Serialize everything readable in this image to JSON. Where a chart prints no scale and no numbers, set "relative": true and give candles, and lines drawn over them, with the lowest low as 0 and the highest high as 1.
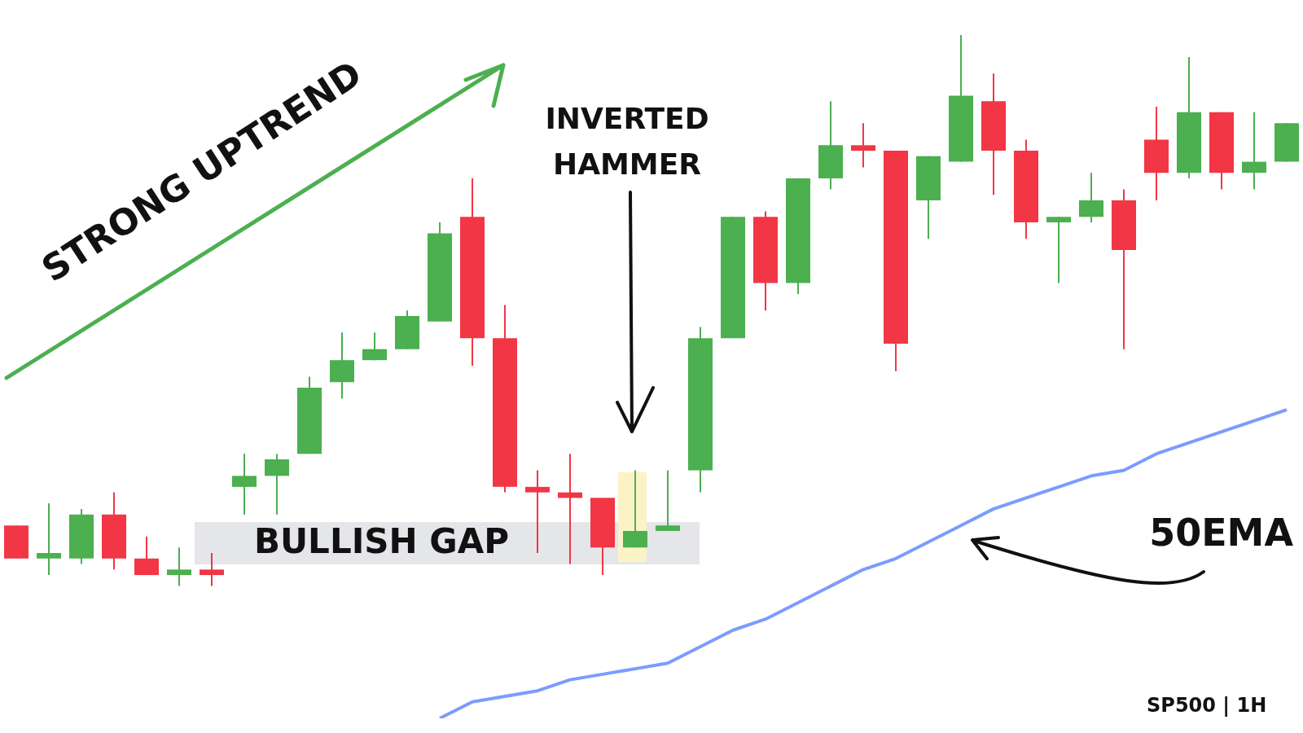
{
  "chart_data": {
    "type": "candlestick",
    "relative": true,
    "categories": [
      null,
      null,
      null,
      null,
      null,
      null,
      null,
      null,
      null,
      null,
      null,
      null,
      null,
      null,
      null,
      null,
      null,
      null,
      null,
      null,
      null,
      null,
      null,
      null,
      null,
      null,
      null,
      null,
      null,
      null,
      null,
      null,
      null,
      null,
      null,
      null,
      null,
      null,
      null,
      null
    ],
    "ohlc": [
      [
        0.11,
        0.11,
        0.05,
        0.05
      ],
      [
        0.05,
        0.15,
        0.02,
        0.06
      ],
      [
        0.05,
        0.14,
        0.04,
        0.13
      ],
      [
        0.13,
        0.17,
        0.03,
        0.05
      ],
      [
        0.05,
        0.09,
        0.02,
        0.02
      ],
      [
        0.02,
        0.07,
        0,
        0.03
      ],
      [
        0.03,
        0.06,
        0,
        0.02
      ],
      [
        0.18,
        0.24,
        0.13,
        0.2
      ],
      [
        0.2,
        0.24,
        0.13,
        0.23
      ],
      [
        0.24,
        0.38,
        0.24,
        0.36
      ],
      [
        0.37,
        0.46,
        0.34,
        0.41
      ],
      [
        0.41,
        0.46,
        0.41,
        0.43
      ],
      [
        0.43,
        0.5,
        0.43,
        0.49
      ],
      [
        0.48,
        0.66,
        0.48,
        0.64
      ],
      [
        0.67,
        0.74,
        0.4,
        0.45
      ],
      [
        0.45,
        0.51,
        0.17,
        0.18
      ],
      [
        0.18,
        0.21,
        0.06,
        0.17
      ],
      [
        0.17,
        0.24,
        0.04,
        0.16
      ],
      [
        0.16,
        0.16,
        0.02,
        0.07
      ],
      [
        0.07,
        0.21,
        0.07,
        0.1
      ],
      [
        0.1,
        0.21,
        0.1,
        0.11
      ],
      [
        0.21,
        0.47,
        0.17,
        0.45
      ],
      [
        0.45,
        0.67,
        0.45,
        0.67
      ],
      [
        0.67,
        0.68,
        0.5,
        0.55
      ],
      [
        0.55,
        0.74,
        0.53,
        0.74
      ],
      [
        0.74,
        0.88,
        0.72,
        0.8
      ],
      [
        0.8,
        0.84,
        0.76,
        0.79
      ],
      [
        0.79,
        0.79,
        0.39,
        0.44
      ],
      [
        0.7,
        0.78,
        0.63,
        0.78
      ],
      [
        0.77,
        1,
        0.77,
        0.89
      ],
      [
        0.88,
        0.93,
        0.71,
        0.79
      ],
      [
        0.79,
        0.81,
        0.63,
        0.66
      ],
      [
        0.66,
        0.67,
        0.55,
        0.67
      ],
      [
        0.67,
        0.75,
        0.66,
        0.7
      ],
      [
        0.7,
        0.72,
        0.43,
        0.61
      ],
      [
        0.81,
        0.87,
        0.7,
        0.75
      ],
      [
        0.75,
        0.96,
        0.74,
        0.86
      ],
      [
        0.86,
        0.86,
        0.72,
        0.75
      ],
      [
        0.75,
        0.86,
        0.72,
        0.77
      ],
      [
        0.77,
        0.84,
        0.77,
        0.84
      ]
    ],
    "colors": [
      "#f23645",
      "#4caf50",
      "#4caf50",
      "#f23645",
      "#f23645",
      "#4caf50",
      "#f23645",
      "#4caf50",
      "#4caf50",
      "#4caf50",
      "#4caf50",
      "#4caf50",
      "#4caf50",
      "#4caf50",
      "#f23645",
      "#f23645",
      "#f23645",
      "#f23645",
      "#f23645",
      "#4caf50",
      "#4caf50",
      "#4caf50",
      "#4caf50",
      "#f23645",
      "#4caf50",
      "#4caf50",
      "#f23645",
      "#f23645",
      "#4caf50",
      "#4caf50",
      "#f23645",
      "#f23645",
      "#4caf50",
      "#4caf50",
      "#f23645",
      "#f23645",
      "#4caf50",
      "#f23645",
      "#4caf50",
      "#4caf50"
    ],
    "series": [
      {
        "name": "50EMA",
        "type": "line",
        "color": "#7b9cff",
        "values": [
          null,
          null,
          null,
          null,
          null,
          null,
          null,
          null,
          null,
          null,
          null,
          null,
          null,
          -0.24,
          -0.21,
          -0.2,
          -0.19,
          -0.17,
          -0.16,
          -0.15,
          -0.14,
          -0.11,
          -0.08,
          -0.06,
          -0.03,
          0,
          0.03,
          0.05,
          0.08,
          0.11,
          0.14,
          0.16,
          0.18,
          0.2,
          0.21,
          0.24,
          0.26,
          0.28,
          0.3,
          0.32
        ]
      }
    ],
    "annotations": [
      "STRONG UPTREND",
      "INVERTED HAMMER",
      "BULLISH GAP",
      "SP500 | 1H"
    ]
  }
}
